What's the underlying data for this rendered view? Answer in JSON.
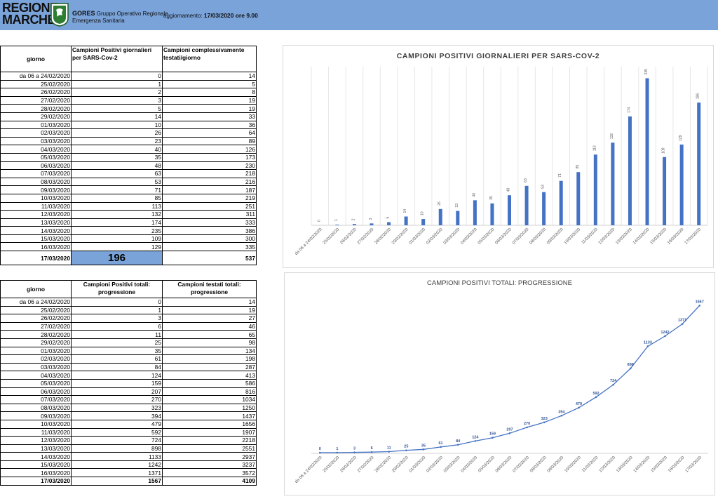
{
  "header": {
    "logo_line1": "REGIONE",
    "logo_line2": "MARCHE",
    "org_short": "GORES",
    "org_line1": "Gruppo Operativo Regionale",
    "org_line2": "Emergenza Sanitaria",
    "update_label": "aggiornamento:",
    "update_value": "17/03/2020 ore 9.00"
  },
  "table1": {
    "col_day": "giorno",
    "col_pos": "Campioni Positivi giornalieri per SARS-Cov-2",
    "col_tested": "Campioni complessivamente testati/giorno",
    "rows": [
      [
        "da 06 a 24/02/2020",
        "0",
        "14"
      ],
      [
        "25/02/2020",
        "1",
        "5"
      ],
      [
        "26/02/2020",
        "2",
        "8"
      ],
      [
        "27/02/2020",
        "3",
        "19"
      ],
      [
        "28/02/2020",
        "5",
        "19"
      ],
      [
        "29/02/2020",
        "14",
        "33"
      ],
      [
        "01/03/2020",
        "10",
        "36"
      ],
      [
        "02/03/2020",
        "26",
        "64"
      ],
      [
        "03/03/2020",
        "23",
        "89"
      ],
      [
        "04/03/2020",
        "40",
        "126"
      ],
      [
        "05/03/2020",
        "35",
        "173"
      ],
      [
        "06/03/2020",
        "48",
        "230"
      ],
      [
        "07/03/2020",
        "63",
        "218"
      ],
      [
        "08/03/2020",
        "53",
        "216"
      ],
      [
        "09/03/2020",
        "71",
        "187"
      ],
      [
        "10/03/2020",
        "85",
        "219"
      ],
      [
        "11/03/2020",
        "113",
        "251"
      ],
      [
        "12/03/2020",
        "132",
        "311"
      ],
      [
        "13/03/2020",
        "174",
        "333"
      ],
      [
        "14/03/2020",
        "235",
        "386"
      ],
      [
        "15/03/2020",
        "109",
        "300"
      ],
      [
        "16/03/2020",
        "129",
        "335"
      ]
    ],
    "last_day": "17/03/2020",
    "last_pos": "196",
    "last_tested": "537"
  },
  "table2": {
    "col_day": "giorno",
    "col_pos": "Campioni Positivi totali: progressione",
    "col_tested": "Campioni testati totali: progressione",
    "rows": [
      [
        "da 06 a 24/02/2020",
        "0",
        "14"
      ],
      [
        "25/02/2020",
        "1",
        "19"
      ],
      [
        "26/02/2020",
        "3",
        "27"
      ],
      [
        "27/02/2020",
        "6",
        "46"
      ],
      [
        "28/02/2020",
        "11",
        "65"
      ],
      [
        "29/02/2020",
        "25",
        "98"
      ],
      [
        "01/03/2020",
        "35",
        "134"
      ],
      [
        "02/03/2020",
        "61",
        "198"
      ],
      [
        "03/03/2020",
        "84",
        "287"
      ],
      [
        "04/03/2020",
        "124",
        "413"
      ],
      [
        "05/03/2020",
        "159",
        "586"
      ],
      [
        "06/03/2020",
        "207",
        "816"
      ],
      [
        "07/03/2020",
        "270",
        "1034"
      ],
      [
        "08/03/2020",
        "323",
        "1250"
      ],
      [
        "09/03/2020",
        "394",
        "1437"
      ],
      [
        "10/03/2020",
        "479",
        "1656"
      ],
      [
        "11/03/2020",
        "592",
        "1907"
      ],
      [
        "12/03/2020",
        "724",
        "2218"
      ],
      [
        "13/03/2020",
        "898",
        "2551"
      ],
      [
        "14/03/2020",
        "1133",
        "2937"
      ],
      [
        "15/03/2020",
        "1242",
        "3237"
      ],
      [
        "16/03/2020",
        "1371",
        "3572"
      ],
      [
        "17/03/2020",
        "1567",
        "4109"
      ]
    ]
  },
  "colors": {
    "header_bg": "#7aa3d9",
    "highlight": "#7aa3d9",
    "series": "#4472c4"
  },
  "chart_data": [
    {
      "type": "bar",
      "title": "CAMPIONI POSITIVI GIORNALIERI PER SARS-COV-2",
      "categories": [
        "da 06 a 24/02/2020",
        "25/02/2020",
        "26/02/2020",
        "27/02/2020",
        "28/02/2020",
        "29/02/2020",
        "01/03/2020",
        "02/03/2020",
        "03/03/2020",
        "04/03/2020",
        "05/03/2020",
        "06/03/2020",
        "07/03/2020",
        "08/03/2020",
        "09/03/2020",
        "10/03/2020",
        "11/03/2020",
        "12/03/2020",
        "13/03/2020",
        "14/03/2020",
        "15/03/2020",
        "16/03/2020",
        "17/03/2020"
      ],
      "values": [
        0,
        1,
        2,
        3,
        5,
        14,
        10,
        26,
        23,
        40,
        35,
        48,
        63,
        53,
        71,
        85,
        113,
        132,
        174,
        235,
        109,
        129,
        196
      ],
      "ylim": [
        0,
        240
      ],
      "grid": true
    },
    {
      "type": "line",
      "title": "CAMPIONI POSITIVI TOTALI: PROGRESSIONE",
      "categories": [
        "da 06 a 24/02/2020",
        "25/02/2020",
        "26/02/2020",
        "27/02/2020",
        "28/02/2020",
        "29/02/2020",
        "01/03/2020",
        "02/03/2020",
        "03/03/2020",
        "04/03/2020",
        "05/03/2020",
        "06/03/2020",
        "07/03/2020",
        "08/03/2020",
        "09/03/2020",
        "10/03/2020",
        "11/03/2020",
        "12/03/2020",
        "13/03/2020",
        "14/03/2020",
        "15/03/2020",
        "16/03/2020",
        "17/03/2020"
      ],
      "values": [
        0,
        1,
        3,
        6,
        11,
        25,
        35,
        61,
        84,
        124,
        159,
        207,
        270,
        323,
        394,
        479,
        592,
        724,
        898,
        1133,
        1242,
        1371,
        1567
      ],
      "ylim": [
        0,
        1600
      ],
      "grid": false
    }
  ]
}
